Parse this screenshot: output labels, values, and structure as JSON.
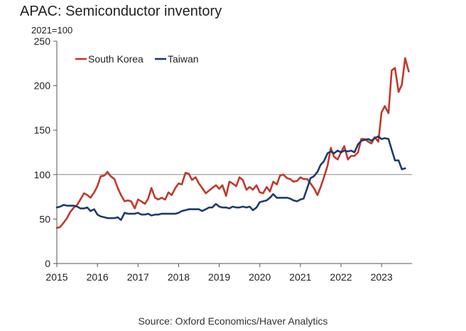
{
  "chart_data": {
    "type": "line",
    "title": "APAC: Semiconductor inventory",
    "units": "2021=100",
    "xlabel": "",
    "ylabel": "",
    "source": "Source: Oxford Economics/Haver Analytics",
    "xlim": [
      2015,
      2023.75
    ],
    "ylim": [
      0,
      250
    ],
    "xticks": [
      2015,
      2016,
      2017,
      2018,
      2019,
      2020,
      2021,
      2022,
      2023
    ],
    "xtick_labels": [
      "2015",
      "2016",
      "2017",
      "2018",
      "2019",
      "2020",
      "2021",
      "2022",
      "2023"
    ],
    "yticks": [
      0,
      50,
      100,
      150,
      200,
      250
    ],
    "ytick_labels": [
      "0",
      "50",
      "100",
      "150",
      "200",
      "250"
    ],
    "reference_line": 100,
    "grid": false,
    "legend": {
      "position": "top-left",
      "entries": [
        "South Korea",
        "Taiwan"
      ]
    },
    "series": [
      {
        "name": "South Korea",
        "color": "#c0392b",
        "points": [
          [
            2015.0,
            40
          ],
          [
            2015.08,
            41
          ],
          [
            2015.17,
            46
          ],
          [
            2015.25,
            51
          ],
          [
            2015.33,
            58
          ],
          [
            2015.42,
            63
          ],
          [
            2015.5,
            66
          ],
          [
            2015.58,
            72
          ],
          [
            2015.67,
            79
          ],
          [
            2015.75,
            77
          ],
          [
            2015.83,
            74
          ],
          [
            2015.92,
            80
          ],
          [
            2016.0,
            87
          ],
          [
            2016.08,
            98
          ],
          [
            2016.17,
            99
          ],
          [
            2016.25,
            103
          ],
          [
            2016.33,
            98
          ],
          [
            2016.42,
            95
          ],
          [
            2016.5,
            85
          ],
          [
            2016.58,
            77
          ],
          [
            2016.67,
            70
          ],
          [
            2016.75,
            71
          ],
          [
            2016.83,
            70
          ],
          [
            2016.92,
            62
          ],
          [
            2017.0,
            72
          ],
          [
            2017.08,
            70
          ],
          [
            2017.17,
            67
          ],
          [
            2017.25,
            73
          ],
          [
            2017.33,
            85
          ],
          [
            2017.42,
            74
          ],
          [
            2017.5,
            72
          ],
          [
            2017.58,
            74
          ],
          [
            2017.67,
            72
          ],
          [
            2017.75,
            80
          ],
          [
            2017.83,
            77
          ],
          [
            2017.92,
            85
          ],
          [
            2018.0,
            90
          ],
          [
            2018.08,
            89
          ],
          [
            2018.17,
            102
          ],
          [
            2018.25,
            101
          ],
          [
            2018.33,
            94
          ],
          [
            2018.42,
            97
          ],
          [
            2018.5,
            90
          ],
          [
            2018.58,
            85
          ],
          [
            2018.67,
            79
          ],
          [
            2018.75,
            82
          ],
          [
            2018.83,
            85
          ],
          [
            2018.92,
            88
          ],
          [
            2019.0,
            84
          ],
          [
            2019.08,
            88
          ],
          [
            2019.17,
            76
          ],
          [
            2019.25,
            92
          ],
          [
            2019.33,
            90
          ],
          [
            2019.42,
            87
          ],
          [
            2019.5,
            97
          ],
          [
            2019.58,
            94
          ],
          [
            2019.67,
            83
          ],
          [
            2019.75,
            86
          ],
          [
            2019.83,
            83
          ],
          [
            2019.92,
            88
          ],
          [
            2020.0,
            80
          ],
          [
            2020.08,
            79
          ],
          [
            2020.17,
            86
          ],
          [
            2020.25,
            81
          ],
          [
            2020.33,
            92
          ],
          [
            2020.42,
            89
          ],
          [
            2020.5,
            99
          ],
          [
            2020.58,
            100
          ],
          [
            2020.67,
            96
          ],
          [
            2020.75,
            95
          ],
          [
            2020.83,
            92
          ],
          [
            2020.92,
            93
          ],
          [
            2021.0,
            97
          ],
          [
            2021.08,
            95
          ],
          [
            2021.17,
            95
          ],
          [
            2021.25,
            90
          ],
          [
            2021.33,
            85
          ],
          [
            2021.42,
            77
          ],
          [
            2021.5,
            86
          ],
          [
            2021.58,
            97
          ],
          [
            2021.67,
            110
          ],
          [
            2021.75,
            130
          ],
          [
            2021.83,
            120
          ],
          [
            2021.92,
            117
          ],
          [
            2022.0,
            125
          ],
          [
            2022.08,
            132
          ],
          [
            2022.17,
            117
          ],
          [
            2022.25,
            121
          ],
          [
            2022.33,
            121
          ],
          [
            2022.42,
            125
          ],
          [
            2022.5,
            140
          ],
          [
            2022.58,
            140
          ],
          [
            2022.67,
            137
          ],
          [
            2022.75,
            135
          ],
          [
            2022.83,
            142
          ],
          [
            2022.92,
            137
          ],
          [
            2023.0,
            170
          ],
          [
            2023.08,
            177
          ],
          [
            2023.17,
            169
          ],
          [
            2023.25,
            217
          ],
          [
            2023.33,
            220
          ],
          [
            2023.42,
            193
          ],
          [
            2023.5,
            201
          ],
          [
            2023.58,
            231
          ],
          [
            2023.67,
            216
          ]
        ]
      },
      {
        "name": "Taiwan",
        "color": "#1f3a6e",
        "points": [
          [
            2015.0,
            63
          ],
          [
            2015.08,
            64
          ],
          [
            2015.17,
            66
          ],
          [
            2015.25,
            65
          ],
          [
            2015.33,
            65
          ],
          [
            2015.42,
            65
          ],
          [
            2015.5,
            64
          ],
          [
            2015.58,
            62
          ],
          [
            2015.67,
            62
          ],
          [
            2015.75,
            63
          ],
          [
            2015.83,
            59
          ],
          [
            2015.92,
            61
          ],
          [
            2016.0,
            55
          ],
          [
            2016.08,
            53
          ],
          [
            2016.17,
            52
          ],
          [
            2016.25,
            51
          ],
          [
            2016.33,
            51
          ],
          [
            2016.42,
            51
          ],
          [
            2016.5,
            52
          ],
          [
            2016.58,
            49
          ],
          [
            2016.67,
            57
          ],
          [
            2016.75,
            56
          ],
          [
            2016.83,
            56
          ],
          [
            2016.92,
            56
          ],
          [
            2017.0,
            57
          ],
          [
            2017.08,
            55
          ],
          [
            2017.17,
            55
          ],
          [
            2017.25,
            56
          ],
          [
            2017.33,
            54
          ],
          [
            2017.42,
            55
          ],
          [
            2017.5,
            55
          ],
          [
            2017.58,
            56
          ],
          [
            2017.67,
            56
          ],
          [
            2017.75,
            56
          ],
          [
            2017.83,
            56
          ],
          [
            2017.92,
            56
          ],
          [
            2018.0,
            57
          ],
          [
            2018.08,
            59
          ],
          [
            2018.17,
            60
          ],
          [
            2018.25,
            61
          ],
          [
            2018.33,
            61
          ],
          [
            2018.42,
            61
          ],
          [
            2018.5,
            61
          ],
          [
            2018.58,
            59
          ],
          [
            2018.67,
            61
          ],
          [
            2018.75,
            63
          ],
          [
            2018.83,
            63
          ],
          [
            2018.92,
            67
          ],
          [
            2019.0,
            64
          ],
          [
            2019.08,
            63
          ],
          [
            2019.17,
            63
          ],
          [
            2019.25,
            62
          ],
          [
            2019.33,
            64
          ],
          [
            2019.42,
            63
          ],
          [
            2019.5,
            63
          ],
          [
            2019.58,
            64
          ],
          [
            2019.67,
            63
          ],
          [
            2019.75,
            64
          ],
          [
            2019.83,
            60
          ],
          [
            2019.92,
            63
          ],
          [
            2020.0,
            69
          ],
          [
            2020.08,
            70
          ],
          [
            2020.17,
            71
          ],
          [
            2020.25,
            74
          ],
          [
            2020.33,
            78
          ],
          [
            2020.42,
            74
          ],
          [
            2020.5,
            74
          ],
          [
            2020.58,
            74
          ],
          [
            2020.67,
            74
          ],
          [
            2020.75,
            73
          ],
          [
            2020.83,
            71
          ],
          [
            2020.92,
            70
          ],
          [
            2021.0,
            72
          ],
          [
            2021.08,
            73
          ],
          [
            2021.17,
            85
          ],
          [
            2021.25,
            96
          ],
          [
            2021.33,
            98
          ],
          [
            2021.42,
            103
          ],
          [
            2021.5,
            111
          ],
          [
            2021.58,
            115
          ],
          [
            2021.67,
            124
          ],
          [
            2021.75,
            126
          ],
          [
            2021.83,
            124
          ],
          [
            2021.92,
            127
          ],
          [
            2022.0,
            125
          ],
          [
            2022.08,
            127
          ],
          [
            2022.17,
            126
          ],
          [
            2022.25,
            127
          ],
          [
            2022.33,
            125
          ],
          [
            2022.42,
            134
          ],
          [
            2022.5,
            138
          ],
          [
            2022.58,
            139
          ],
          [
            2022.67,
            140
          ],
          [
            2022.75,
            138
          ],
          [
            2022.83,
            141
          ],
          [
            2022.92,
            143
          ],
          [
            2023.0,
            140
          ],
          [
            2023.08,
            141
          ],
          [
            2023.17,
            140
          ],
          [
            2023.25,
            128
          ],
          [
            2023.33,
            116
          ],
          [
            2023.42,
            116
          ],
          [
            2023.5,
            106
          ],
          [
            2023.58,
            107
          ]
        ]
      }
    ]
  }
}
